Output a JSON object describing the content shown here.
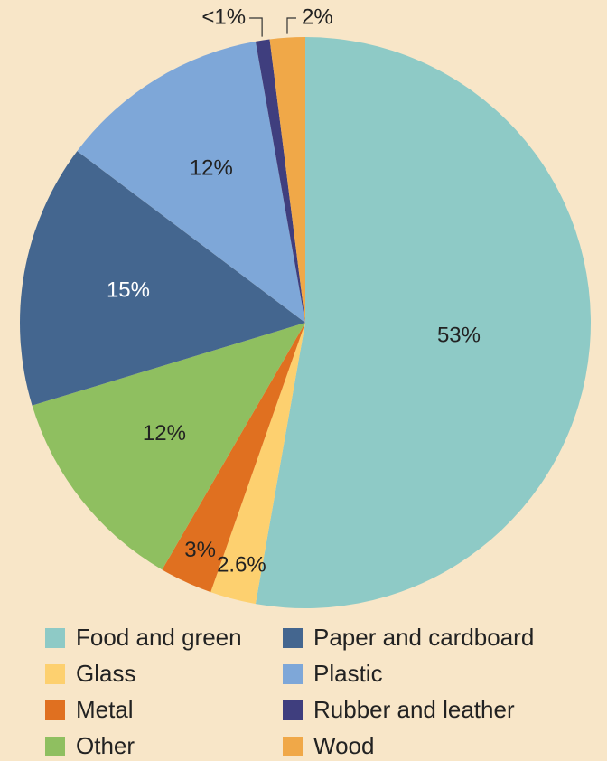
{
  "chart_data": {
    "type": "pie",
    "categories": [
      "Food and green",
      "Glass",
      "Metal",
      "Other",
      "Paper and cardboard",
      "Plastic",
      "Rubber and leather",
      "Wood"
    ],
    "values": [
      53,
      2.6,
      3,
      12,
      15,
      12,
      0.8,
      2
    ],
    "value_labels": [
      "53%",
      "2.6%",
      "3%",
      "12%",
      "15%",
      "12%",
      "<1%",
      "2%"
    ],
    "colors": [
      "#8ecac6",
      "#fdd06f",
      "#e07020",
      "#8fbf60",
      "#44668f",
      "#7ea7d8",
      "#3f3e7e",
      "#f0a848"
    ]
  }
}
